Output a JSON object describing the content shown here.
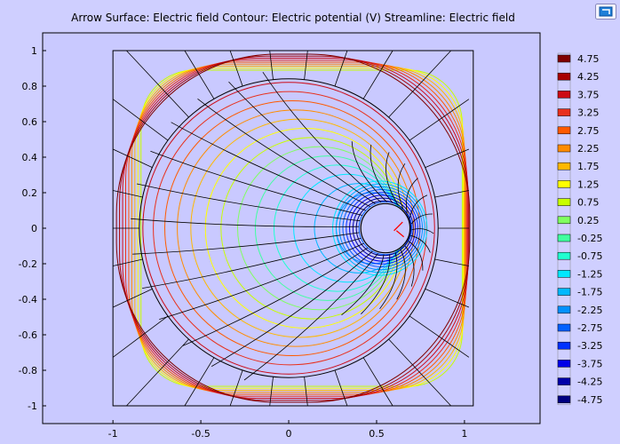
{
  "title": "Arrow Surface: Electric field  Contour: Electric potential (V)  Streamline: Electric field",
  "colors": {
    "background": "#cfcfff",
    "axes_bg": "#c9c9ff",
    "frame": "#000000",
    "streamline": "#000000",
    "arrow": "#ff0000"
  },
  "icons": {
    "corner_button": "window-restore-icon"
  },
  "chart_data": {
    "type": "contour",
    "title": "Arrow Surface: Electric field  Contour: Electric potential (V)  Streamline: Electric field",
    "xlim": [
      -1.4,
      1.43
    ],
    "ylim": [
      -1.1,
      1.1
    ],
    "x_ticks": [
      "-1",
      "-0.5",
      "0",
      "0.5",
      "1"
    ],
    "x_tick_values": [
      -1,
      -0.5,
      0,
      0.5,
      1
    ],
    "y_ticks": [
      "1",
      "0.8",
      "0.6",
      "0.4",
      "0.2",
      "0",
      "-0.2",
      "-0.4",
      "-0.6",
      "-0.8",
      "-1"
    ],
    "y_tick_values": [
      1,
      0.8,
      0.6,
      0.4,
      0.2,
      0,
      -0.2,
      -0.4,
      -0.6,
      -0.8,
      -1
    ],
    "geometry": {
      "outer_square": {
        "xmin": -1,
        "xmax": 1.05,
        "ymin": -1,
        "ymax": 1
      },
      "large_circle": {
        "cx": 0.0,
        "cy": 0.0,
        "r": 0.85
      },
      "small_circle": {
        "cx": 0.55,
        "cy": 0.0,
        "r": 0.14
      }
    },
    "grid": false,
    "legend_position": "right",
    "contour_levels": [
      {
        "label": "4.75",
        "color": "#800000"
      },
      {
        "label": "4.25",
        "color": "#a80000"
      },
      {
        "label": "3.75",
        "color": "#cc0a14"
      },
      {
        "label": "3.25",
        "color": "#e8301c"
      },
      {
        "label": "2.75",
        "color": "#ff5a00"
      },
      {
        "label": "2.25",
        "color": "#ff8c00"
      },
      {
        "label": "1.75",
        "color": "#ffb800"
      },
      {
        "label": "1.25",
        "color": "#ffff00"
      },
      {
        "label": "0.75",
        "color": "#c8ff00"
      },
      {
        "label": "0.25",
        "color": "#80ff60"
      },
      {
        "label": "-0.25",
        "color": "#40ffa0"
      },
      {
        "label": "-0.75",
        "color": "#20ffd0"
      },
      {
        "label": "-1.25",
        "color": "#00e8ff"
      },
      {
        "label": "-1.75",
        "color": "#00b8ff"
      },
      {
        "label": "-2.25",
        "color": "#0090ff"
      },
      {
        "label": "-2.75",
        "color": "#0060ff"
      },
      {
        "label": "-3.25",
        "color": "#0030ff"
      },
      {
        "label": "-3.75",
        "color": "#0000e8"
      },
      {
        "label": "-4.25",
        "color": "#0000a8"
      },
      {
        "label": "-4.75",
        "color": "#000080"
      }
    ]
  }
}
